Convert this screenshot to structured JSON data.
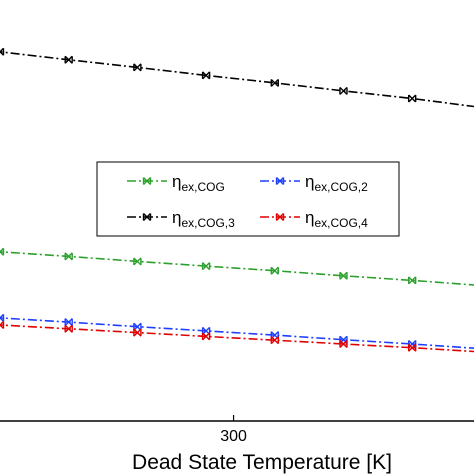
{
  "chart_data": {
    "type": "line",
    "xlabel": "Dead State Temperature [K]",
    "ylabel": "",
    "x_ticks": [
      300
    ],
    "xlim": [
      283,
      317.5
    ],
    "ylim": [
      0,
      1
    ],
    "grid": false,
    "legend_placement": "center-right",
    "x": [
      283,
      288,
      293,
      298,
      303,
      308,
      313,
      317.5
    ],
    "series": [
      {
        "label_symbol": "η",
        "label_subscript": "ex,COG",
        "color": "#2ca02c",
        "dash": "dashdot",
        "values": [
          0.402,
          0.391,
          0.379,
          0.368,
          0.357,
          0.345,
          0.334,
          0.323
        ]
      },
      {
        "label_symbol": "η",
        "label_subscript": "ex,COG,2",
        "color": "#1f3fff",
        "dash": "dashdot",
        "values": [
          0.245,
          0.235,
          0.224,
          0.214,
          0.204,
          0.193,
          0.183,
          0.173
        ]
      },
      {
        "label_symbol": "η",
        "label_subscript": "ex,COG,3",
        "color": "#000000",
        "dash": "dashdot",
        "values": [
          0.877,
          0.858,
          0.84,
          0.821,
          0.803,
          0.784,
          0.766,
          0.747
        ]
      },
      {
        "label_symbol": "η",
        "label_subscript": "ex,COG,4",
        "color": "#e00000",
        "dash": "dashdot",
        "values": [
          0.228,
          0.219,
          0.21,
          0.201,
          0.192,
          0.183,
          0.174,
          0.165
        ]
      }
    ]
  }
}
